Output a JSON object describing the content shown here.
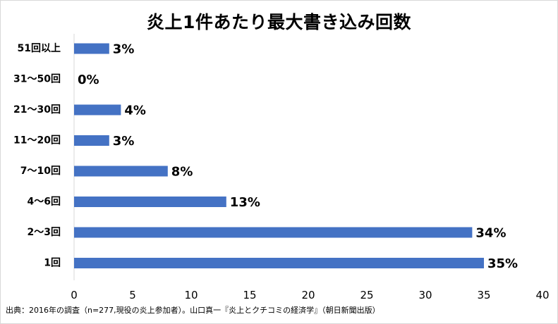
{
  "chart_data": {
    "type": "bar",
    "orientation": "horizontal",
    "title": "炎上1件あたり最大書き込み回数",
    "categories": [
      "51回以上",
      "31～50回",
      "21～30回",
      "11～20回",
      "7～10回",
      "4～6回",
      "2～3回",
      "1回"
    ],
    "values": [
      3,
      0,
      4,
      3,
      8,
      13,
      34,
      35
    ],
    "data_labels": [
      "3%",
      "0%",
      "4%",
      "3%",
      "8%",
      "13%",
      "34%",
      "35%"
    ],
    "xlim": [
      0,
      40
    ],
    "x_ticks": [
      "0",
      "5",
      "10",
      "15",
      "20",
      "25",
      "30",
      "35",
      "40"
    ],
    "grid": false,
    "legend": "none",
    "bar_color": "#4472c4",
    "source": "出典：2016年の調査（n=277,現役の炎上参加者）。山口真一『炎上とクチコミの経済学』（朝日新聞出版）"
  }
}
